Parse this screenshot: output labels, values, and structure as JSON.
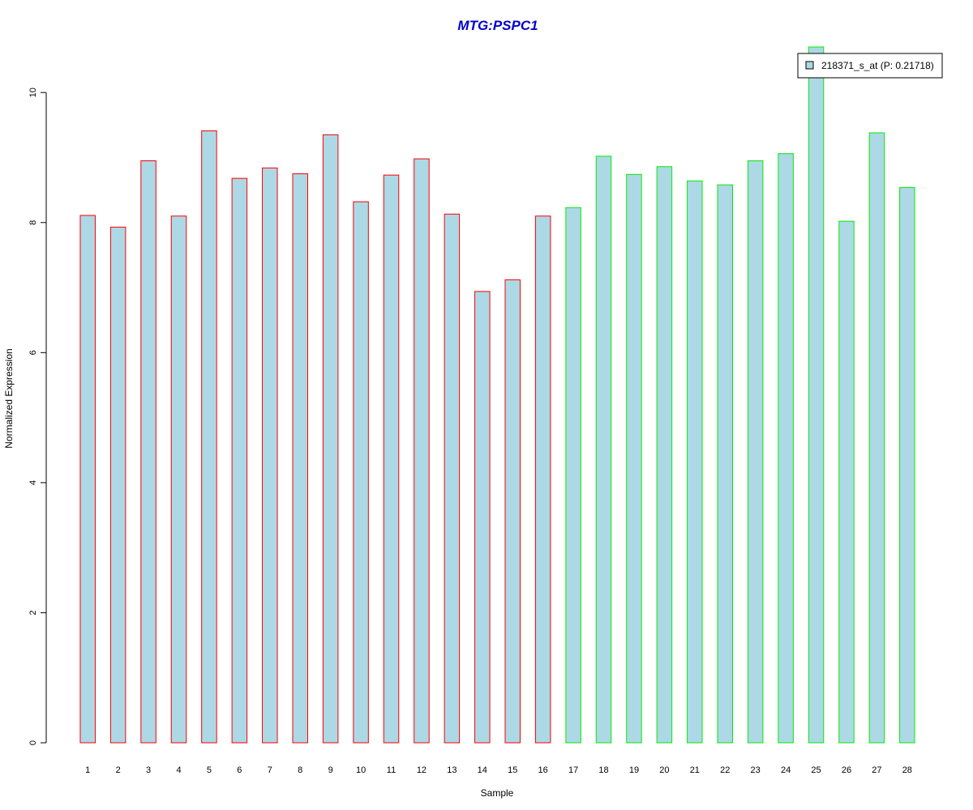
{
  "chart_data": {
    "type": "bar",
    "title": "MTG:PSPC1",
    "xlabel": "Sample",
    "ylabel": "Normalized Expression",
    "categories": [
      "1",
      "2",
      "3",
      "4",
      "5",
      "6",
      "7",
      "8",
      "9",
      "10",
      "11",
      "12",
      "13",
      "14",
      "15",
      "16",
      "17",
      "18",
      "19",
      "20",
      "21",
      "22",
      "23",
      "24",
      "25",
      "26",
      "27",
      "28"
    ],
    "values": [
      8.11,
      7.93,
      8.95,
      8.1,
      9.41,
      8.68,
      8.84,
      8.75,
      9.35,
      8.32,
      8.73,
      8.98,
      8.13,
      6.94,
      7.12,
      8.1,
      8.23,
      9.02,
      8.74,
      8.86,
      8.64,
      8.58,
      8.95,
      9.06,
      10.7,
      8.02,
      9.38,
      8.54
    ],
    "groups": [
      1,
      1,
      1,
      1,
      1,
      1,
      1,
      1,
      1,
      1,
      1,
      1,
      1,
      1,
      1,
      1,
      2,
      2,
      2,
      2,
      2,
      2,
      2,
      2,
      2,
      2,
      2,
      2
    ],
    "ylim": [
      0,
      10.7
    ],
    "yticks": [
      0,
      2,
      4,
      6,
      8,
      10
    ],
    "grid": false,
    "legend": {
      "position": "top-right",
      "entries": [
        {
          "label": "218371_s_at (P: 0.21718)",
          "color": "#add8e6"
        }
      ]
    },
    "colors": {
      "title": "#0000cd",
      "bar_fill": "#add8e6",
      "group1_border": "#ff0000",
      "group2_border": "#00ee00",
      "axis": "#000000"
    }
  }
}
